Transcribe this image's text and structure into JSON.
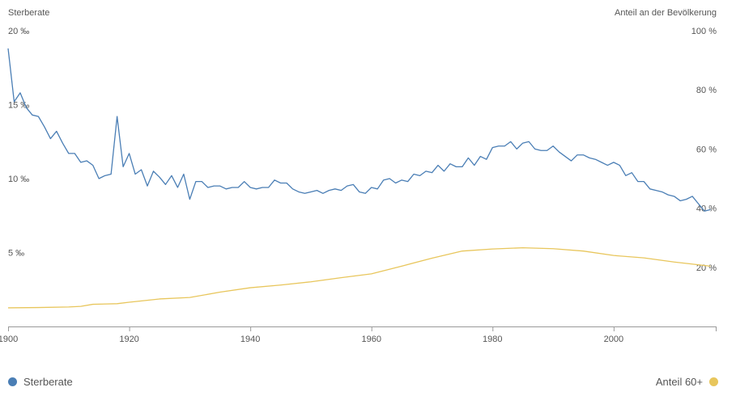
{
  "colors": {
    "death_rate": "#4a7eb5",
    "share60": "#e8c65c",
    "axis": "#999999",
    "text": "#555555"
  },
  "chart_data": {
    "type": "line",
    "left_axis": {
      "title": "Sterberate",
      "ticks": [
        {
          "value": 5,
          "label": "5 ‰"
        },
        {
          "value": 10,
          "label": "10 ‰"
        },
        {
          "value": 15,
          "label": "15 ‰"
        },
        {
          "value": 20,
          "label": "20 ‰"
        }
      ],
      "range": [
        0,
        20
      ]
    },
    "right_axis": {
      "title": "Anteil an der Bevölkerung",
      "ticks": [
        {
          "value": 20,
          "label": "20 %"
        },
        {
          "value": 40,
          "label": "40 %"
        },
        {
          "value": 60,
          "label": "60 %"
        },
        {
          "value": 80,
          "label": "80 %"
        },
        {
          "value": 100,
          "label": "100 %"
        }
      ],
      "range": [
        0,
        100
      ]
    },
    "x_axis": {
      "ticks": [
        {
          "value": 1900,
          "label": "1900"
        },
        {
          "value": 1920,
          "label": "1920"
        },
        {
          "value": 1940,
          "label": "1940"
        },
        {
          "value": 1960,
          "label": "1960"
        },
        {
          "value": 1980,
          "label": "1980"
        },
        {
          "value": 2000,
          "label": "2000"
        }
      ],
      "range": [
        1900,
        2017
      ]
    },
    "grid": false,
    "legend": {
      "left": {
        "label": "Sterberate",
        "position": "bottom-left"
      },
      "right": {
        "label": "Anteil 60+",
        "position": "bottom-right"
      }
    },
    "series": [
      {
        "axis": "left",
        "values": [
          [
            1900,
            18.8
          ],
          [
            1901,
            15.2
          ],
          [
            1902,
            15.8
          ],
          [
            1903,
            14.8
          ],
          [
            1904,
            14.3
          ],
          [
            1905,
            14.2
          ],
          [
            1906,
            13.5
          ],
          [
            1907,
            12.7
          ],
          [
            1908,
            13.2
          ],
          [
            1909,
            12.4
          ],
          [
            1910,
            11.7
          ],
          [
            1911,
            11.7
          ],
          [
            1912,
            11.1
          ],
          [
            1913,
            11.2
          ],
          [
            1914,
            10.9
          ],
          [
            1915,
            10.0
          ],
          [
            1916,
            10.2
          ],
          [
            1917,
            10.3
          ],
          [
            1918,
            14.2
          ],
          [
            1919,
            10.8
          ],
          [
            1920,
            11.7
          ],
          [
            1921,
            10.3
          ],
          [
            1922,
            10.6
          ],
          [
            1923,
            9.5
          ],
          [
            1924,
            10.5
          ],
          [
            1925,
            10.1
          ],
          [
            1926,
            9.6
          ],
          [
            1927,
            10.2
          ],
          [
            1928,
            9.4
          ],
          [
            1929,
            10.3
          ],
          [
            1930,
            8.6
          ],
          [
            1931,
            9.8
          ],
          [
            1932,
            9.8
          ],
          [
            1933,
            9.4
          ],
          [
            1934,
            9.5
          ],
          [
            1935,
            9.5
          ],
          [
            1936,
            9.3
          ],
          [
            1937,
            9.4
          ],
          [
            1938,
            9.4
          ],
          [
            1939,
            9.8
          ],
          [
            1940,
            9.4
          ],
          [
            1941,
            9.3
          ],
          [
            1942,
            9.4
          ],
          [
            1943,
            9.4
          ],
          [
            1944,
            9.9
          ],
          [
            1945,
            9.7
          ],
          [
            1946,
            9.7
          ],
          [
            1947,
            9.3
          ],
          [
            1948,
            9.1
          ],
          [
            1949,
            9.0
          ],
          [
            1950,
            9.1
          ],
          [
            1951,
            9.2
          ],
          [
            1952,
            9.0
          ],
          [
            1953,
            9.2
          ],
          [
            1954,
            9.3
          ],
          [
            1955,
            9.2
          ],
          [
            1956,
            9.5
          ],
          [
            1957,
            9.6
          ],
          [
            1958,
            9.1
          ],
          [
            1959,
            9.0
          ],
          [
            1960,
            9.4
          ],
          [
            1961,
            9.3
          ],
          [
            1962,
            9.9
          ],
          [
            1963,
            10.0
          ],
          [
            1964,
            9.7
          ],
          [
            1965,
            9.9
          ],
          [
            1966,
            9.8
          ],
          [
            1967,
            10.3
          ],
          [
            1968,
            10.2
          ],
          [
            1969,
            10.5
          ],
          [
            1970,
            10.4
          ],
          [
            1971,
            10.9
          ],
          [
            1972,
            10.5
          ],
          [
            1973,
            11.0
          ],
          [
            1974,
            10.8
          ],
          [
            1975,
            10.8
          ],
          [
            1976,
            11.4
          ],
          [
            1977,
            10.9
          ],
          [
            1978,
            11.5
          ],
          [
            1979,
            11.3
          ],
          [
            1980,
            12.1
          ],
          [
            1981,
            12.2
          ],
          [
            1982,
            12.2
          ],
          [
            1983,
            12.5
          ],
          [
            1984,
            12.0
          ],
          [
            1985,
            12.4
          ],
          [
            1986,
            12.5
          ],
          [
            1987,
            12.0
          ],
          [
            1988,
            11.9
          ],
          [
            1989,
            11.9
          ],
          [
            1990,
            12.2
          ],
          [
            1991,
            11.8
          ],
          [
            1992,
            11.5
          ],
          [
            1993,
            11.2
          ],
          [
            1994,
            11.6
          ],
          [
            1995,
            11.6
          ],
          [
            1996,
            11.4
          ],
          [
            1997,
            11.3
          ],
          [
            1998,
            11.1
          ],
          [
            1999,
            10.9
          ],
          [
            2000,
            11.1
          ],
          [
            2001,
            10.9
          ],
          [
            2002,
            10.2
          ],
          [
            2003,
            10.4
          ],
          [
            2004,
            9.8
          ],
          [
            2005,
            9.8
          ],
          [
            2006,
            9.3
          ],
          [
            2007,
            9.2
          ],
          [
            2008,
            9.1
          ],
          [
            2009,
            8.9
          ],
          [
            2010,
            8.8
          ],
          [
            2011,
            8.5
          ],
          [
            2012,
            8.6
          ],
          [
            2013,
            8.8
          ],
          [
            2014,
            8.3
          ],
          [
            2015,
            7.8
          ],
          [
            2016,
            7.9
          ]
        ]
      },
      {
        "axis": "right",
        "values": [
          [
            1900,
            6.3
          ],
          [
            1905,
            6.4
          ],
          [
            1910,
            6.6
          ],
          [
            1912,
            6.8
          ],
          [
            1914,
            7.5
          ],
          [
            1918,
            7.7
          ],
          [
            1920,
            8.2
          ],
          [
            1925,
            9.3
          ],
          [
            1930,
            9.8
          ],
          [
            1935,
            11.6
          ],
          [
            1940,
            13.1
          ],
          [
            1945,
            14.0
          ],
          [
            1950,
            15.1
          ],
          [
            1955,
            16.5
          ],
          [
            1960,
            17.8
          ],
          [
            1965,
            20.4
          ],
          [
            1970,
            23.1
          ],
          [
            1975,
            25.5
          ],
          [
            1980,
            26.2
          ],
          [
            1985,
            26.6
          ],
          [
            1990,
            26.3
          ],
          [
            1995,
            25.5
          ],
          [
            2000,
            24.0
          ],
          [
            2005,
            23.2
          ],
          [
            2010,
            21.8
          ],
          [
            2016,
            20.4
          ]
        ]
      }
    ]
  }
}
